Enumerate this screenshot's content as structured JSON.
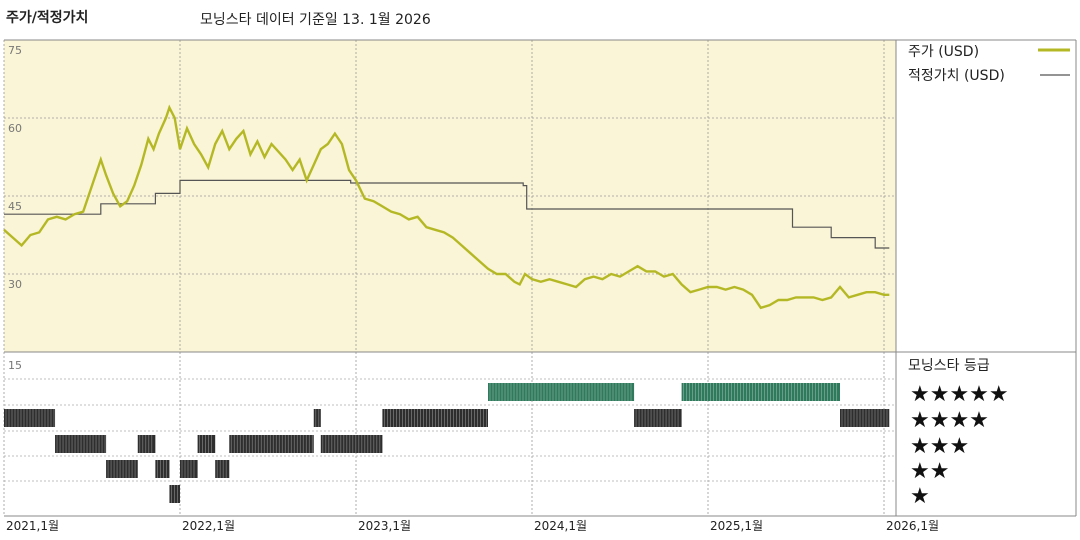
{
  "header": {
    "title": "주가/적정가치",
    "subtitle": "모닝스타 데이터 기준일 13. 1월 2026"
  },
  "legend": {
    "price_label": "주가 (USD)",
    "fair_label": "적정가치 (USD)",
    "rating_title": "모닝스타 등급"
  },
  "colors": {
    "price": "#b5b825",
    "fair": "#555555",
    "upper_bg": "#faf5d6",
    "bar_dark": "#2e2e2e",
    "bar_green": "#2f7a5c"
  },
  "chart_data": [
    {
      "type": "line",
      "title": "주가/적정가치",
      "ylim": [
        15,
        75
      ],
      "yticks": [
        "75",
        "60",
        "45",
        "30",
        "15"
      ],
      "xticks": [
        "2021,1월",
        "2022,1월",
        "2023,1월",
        "2024,1월",
        "2025,1월",
        "2026,1월"
      ],
      "series": [
        {
          "name": "주가 (USD)",
          "points": [
            [
              2021.0,
              38.5
            ],
            [
              2021.05,
              37.0
            ],
            [
              2021.1,
              35.5
            ],
            [
              2021.15,
              37.5
            ],
            [
              2021.2,
              38.0
            ],
            [
              2021.25,
              40.5
            ],
            [
              2021.3,
              41.0
            ],
            [
              2021.35,
              40.5
            ],
            [
              2021.4,
              41.5
            ],
            [
              2021.45,
              42.0
            ],
            [
              2021.5,
              47.0
            ],
            [
              2021.55,
              52.0
            ],
            [
              2021.58,
              49.0
            ],
            [
              2021.62,
              45.5
            ],
            [
              2021.66,
              43.0
            ],
            [
              2021.7,
              44.0
            ],
            [
              2021.74,
              47.0
            ],
            [
              2021.78,
              51.0
            ],
            [
              2021.82,
              56.0
            ],
            [
              2021.85,
              54.0
            ],
            [
              2021.88,
              57.0
            ],
            [
              2021.92,
              60.0
            ],
            [
              2021.94,
              62.0
            ],
            [
              2021.97,
              60.0
            ],
            [
              2022.0,
              54.0
            ],
            [
              2022.04,
              58.0
            ],
            [
              2022.08,
              55.0
            ],
            [
              2022.12,
              53.0
            ],
            [
              2022.16,
              50.5
            ],
            [
              2022.2,
              55.0
            ],
            [
              2022.24,
              57.5
            ],
            [
              2022.28,
              54.0
            ],
            [
              2022.32,
              56.0
            ],
            [
              2022.36,
              57.5
            ],
            [
              2022.4,
              53.0
            ],
            [
              2022.44,
              55.5
            ],
            [
              2022.48,
              52.5
            ],
            [
              2022.52,
              55.0
            ],
            [
              2022.56,
              53.5
            ],
            [
              2022.6,
              52.0
            ],
            [
              2022.64,
              50.0
            ],
            [
              2022.68,
              52.0
            ],
            [
              2022.72,
              48.0
            ],
            [
              2022.76,
              51.0
            ],
            [
              2022.8,
              54.0
            ],
            [
              2022.84,
              55.0
            ],
            [
              2022.88,
              57.0
            ],
            [
              2022.92,
              55.0
            ],
            [
              2022.96,
              50.0
            ],
            [
              2023.0,
              48.0
            ],
            [
              2023.05,
              44.5
            ],
            [
              2023.1,
              44.0
            ],
            [
              2023.15,
              43.0
            ],
            [
              2023.2,
              42.0
            ],
            [
              2023.25,
              41.5
            ],
            [
              2023.3,
              40.5
            ],
            [
              2023.35,
              41.0
            ],
            [
              2023.4,
              39.0
            ],
            [
              2023.45,
              38.5
            ],
            [
              2023.5,
              38.0
            ],
            [
              2023.55,
              37.0
            ],
            [
              2023.6,
              35.5
            ],
            [
              2023.65,
              34.0
            ],
            [
              2023.7,
              32.5
            ],
            [
              2023.75,
              31.0
            ],
            [
              2023.8,
              30.0
            ],
            [
              2023.85,
              30.0
            ],
            [
              2023.9,
              28.5
            ],
            [
              2023.93,
              28.0
            ],
            [
              2023.96,
              30.0
            ],
            [
              2024.0,
              29.0
            ],
            [
              2024.05,
              28.5
            ],
            [
              2024.1,
              29.0
            ],
            [
              2024.15,
              28.5
            ],
            [
              2024.2,
              28.0
            ],
            [
              2024.25,
              27.5
            ],
            [
              2024.3,
              29.0
            ],
            [
              2024.35,
              29.5
            ],
            [
              2024.4,
              29.0
            ],
            [
              2024.45,
              30.0
            ],
            [
              2024.5,
              29.5
            ],
            [
              2024.55,
              30.5
            ],
            [
              2024.6,
              31.5
            ],
            [
              2024.65,
              30.5
            ],
            [
              2024.7,
              30.5
            ],
            [
              2024.75,
              29.5
            ],
            [
              2024.8,
              30.0
            ],
            [
              2024.85,
              28.0
            ],
            [
              2024.9,
              26.5
            ],
            [
              2024.95,
              27.0
            ],
            [
              2025.0,
              27.5
            ],
            [
              2025.05,
              27.5
            ],
            [
              2025.1,
              27.0
            ],
            [
              2025.15,
              27.5
            ],
            [
              2025.2,
              27.0
            ],
            [
              2025.25,
              26.0
            ],
            [
              2025.3,
              23.5
            ],
            [
              2025.35,
              24.0
            ],
            [
              2025.4,
              25.0
            ],
            [
              2025.45,
              25.0
            ],
            [
              2025.5,
              25.5
            ],
            [
              2025.55,
              25.5
            ],
            [
              2025.6,
              25.5
            ],
            [
              2025.65,
              25.0
            ],
            [
              2025.7,
              25.5
            ],
            [
              2025.75,
              27.5
            ],
            [
              2025.8,
              25.5
            ],
            [
              2025.85,
              26.0
            ],
            [
              2025.9,
              26.5
            ],
            [
              2025.95,
              26.5
            ],
            [
              2026.0,
              26.0
            ],
            [
              2026.03,
              26.0
            ]
          ]
        },
        {
          "name": "적정가치 (USD)",
          "points": [
            [
              2021.0,
              41.5
            ],
            [
              2021.55,
              41.5
            ],
            [
              2021.55,
              43.5
            ],
            [
              2021.86,
              43.5
            ],
            [
              2021.86,
              45.5
            ],
            [
              2022.0,
              45.5
            ],
            [
              2022.0,
              48.0
            ],
            [
              2022.97,
              48.0
            ],
            [
              2022.97,
              47.5
            ],
            [
              2023.95,
              47.5
            ],
            [
              2023.95,
              47.0
            ],
            [
              2023.97,
              47.0
            ],
            [
              2023.97,
              42.5
            ],
            [
              2025.48,
              42.5
            ],
            [
              2025.48,
              39.0
            ],
            [
              2025.7,
              39.0
            ],
            [
              2025.7,
              37.0
            ],
            [
              2025.95,
              37.0
            ],
            [
              2025.95,
              35.0
            ],
            [
              2026.03,
              35.0
            ]
          ]
        }
      ]
    },
    {
      "type": "heatmap",
      "title": "모닝스타 등급",
      "levels": [
        "★★★★★",
        "★★★★",
        "★★★",
        "★★",
        "★"
      ],
      "segments": [
        {
          "stars": 4,
          "from": 2021.0,
          "to": 2021.29
        },
        {
          "stars": 3,
          "from": 2021.29,
          "to": 2021.58
        },
        {
          "stars": 2,
          "from": 2021.58,
          "to": 2021.76
        },
        {
          "stars": 3,
          "from": 2021.76,
          "to": 2021.86
        },
        {
          "stars": 2,
          "from": 2021.86,
          "to": 2021.94
        },
        {
          "stars": 1,
          "from": 2021.94,
          "to": 2022.0
        },
        {
          "stars": 2,
          "from": 2022.0,
          "to": 2022.1
        },
        {
          "stars": 3,
          "from": 2022.1,
          "to": 2022.2
        },
        {
          "stars": 2,
          "from": 2022.2,
          "to": 2022.28
        },
        {
          "stars": 3,
          "from": 2022.28,
          "to": 2022.76
        },
        {
          "stars": 4,
          "from": 2022.76,
          "to": 2022.8
        },
        {
          "stars": 3,
          "from": 2022.8,
          "to": 2023.15
        },
        {
          "stars": 4,
          "from": 2023.15,
          "to": 2023.75
        },
        {
          "stars": 5,
          "from": 2023.75,
          "to": 2024.58
        },
        {
          "stars": 4,
          "from": 2024.58,
          "to": 2024.85
        },
        {
          "stars": 5,
          "from": 2024.85,
          "to": 2025.75
        },
        {
          "stars": 4,
          "from": 2025.75,
          "to": 2026.03
        }
      ]
    }
  ]
}
